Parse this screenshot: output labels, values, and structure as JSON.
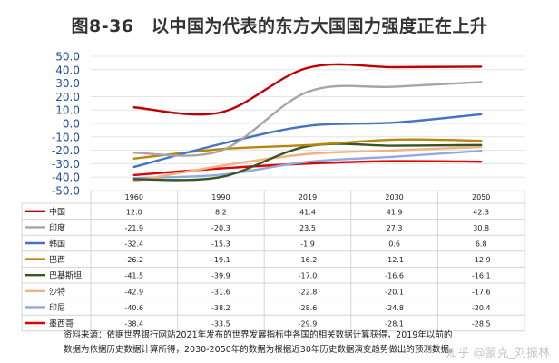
{
  "title": "图8-36　以中国为代表的东方大国国力强度正在上升",
  "footer_lines": [
    "资料来源：依据世界银行网站2021年发布的世界发展指标中各国的相关数据计算获得，2019年以前的",
    "数据为依据历史数据计算所得，2030-2050年的数据为根据近30年历史数据演变趋势做出的预测数据。"
  ],
  "watermark": "知乎 @蒙克_刘振林",
  "chart_data": {
    "type": "line",
    "x": [
      "1960",
      "1990",
      "2019",
      "2030",
      "2050"
    ],
    "ylim": [
      -50,
      50
    ],
    "yticks": [
      "50.0",
      "40.0",
      "30.0",
      "20.0",
      "10.0",
      "0.0",
      "-10.0",
      "-20.0",
      "-30.0",
      "-40.0",
      "-50.0"
    ],
    "grid": true,
    "legend": "table-below",
    "series": [
      {
        "name": "中国",
        "color": "#c00000",
        "values": [
          12.0,
          8.2,
          41.4,
          41.9,
          42.3
        ],
        "labels": [
          "12.0",
          "8.2",
          "41.4",
          "41.9",
          "42.3"
        ]
      },
      {
        "name": "印度",
        "color": "#a6a6a6",
        "values": [
          -21.9,
          -20.3,
          23.5,
          27.3,
          30.8
        ],
        "labels": [
          "-21.9",
          "-20.3",
          "23.5",
          "27.3",
          "30.8"
        ]
      },
      {
        "name": "韩国",
        "color": "#4472c4",
        "values": [
          -32.4,
          -15.3,
          -1.9,
          0.6,
          6.8
        ],
        "labels": [
          "-32.4",
          "-15.3",
          "-1.9",
          "0.6",
          "6.8"
        ]
      },
      {
        "name": "巴西",
        "color": "#b8860b",
        "values": [
          -26.2,
          -19.1,
          -16.2,
          -12.1,
          -12.9
        ],
        "labels": [
          "-26.2",
          "-19.1",
          "-16.2",
          "-12.1",
          "-12.9"
        ]
      },
      {
        "name": "巴基斯坦",
        "color": "#375623",
        "values": [
          -41.5,
          -39.9,
          -17.0,
          -16.6,
          -16.1
        ],
        "labels": [
          "-41.5",
          "-39.9",
          "-17.0",
          "-16.6",
          "-16.1"
        ]
      },
      {
        "name": "沙特",
        "color": "#f4b183",
        "values": [
          -42.9,
          -31.6,
          -22.8,
          -20.1,
          -17.6
        ],
        "labels": [
          "-42.9",
          "-31.6",
          "-22.8",
          "-20.1",
          "-17.6"
        ]
      },
      {
        "name": "印尼",
        "color": "#8faadc",
        "values": [
          -40.6,
          -38.2,
          -28.6,
          -24.8,
          -20.4
        ],
        "labels": [
          "-40.6",
          "-38.2",
          "-28.6",
          "-24.8",
          "-20.4"
        ]
      },
      {
        "name": "墨西哥",
        "color": "#e00000",
        "values": [
          -38.4,
          -33.5,
          -29.9,
          -28.1,
          -28.5
        ],
        "labels": [
          "-38.4",
          "-33.5",
          "-29.9",
          "-28.1",
          "-28.5"
        ]
      }
    ]
  }
}
